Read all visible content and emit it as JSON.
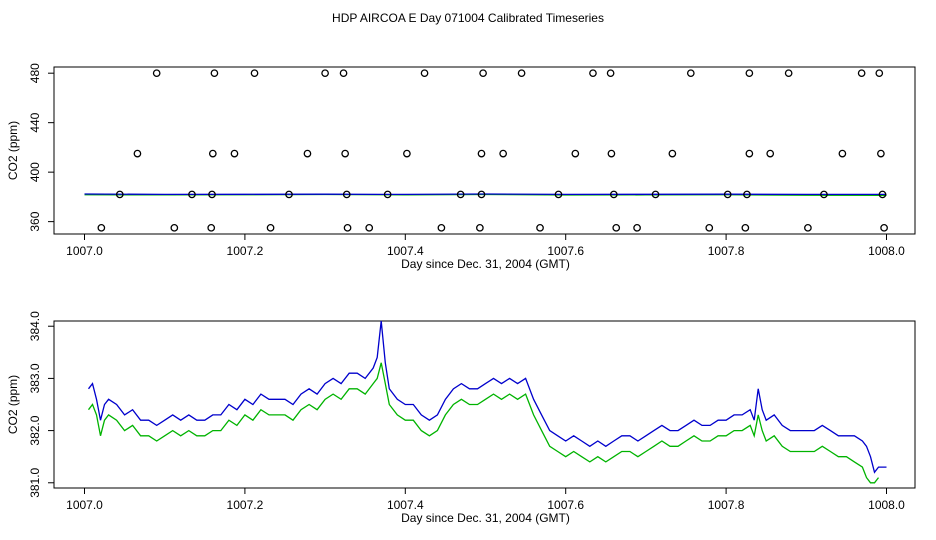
{
  "title": "HDP AIRCOA E  Day 071004  Calibrated Timeseries",
  "colors": {
    "blue": "#0000cc",
    "green": "#00b300",
    "axis": "#000000",
    "points": "#000000"
  },
  "chart_data": [
    {
      "type": "scatter",
      "xlabel": "Day since Dec. 31, 2004 (GMT)",
      "ylabel": "CO2 (ppm)",
      "xlim": [
        1007.0,
        1008.0
      ],
      "ylim": [
        350,
        485
      ],
      "xticks": [
        1007.0,
        1007.2,
        1007.4,
        1007.6,
        1007.8,
        1008.0
      ],
      "xtick_labels": [
        "1007.0",
        "1007.2",
        "1007.4",
        "1007.6",
        "1007.8",
        "1008.0"
      ],
      "yticks": [
        360,
        400,
        440,
        480
      ],
      "ytick_labels": [
        "360",
        "400",
        "440",
        "480"
      ],
      "points": [
        [
          1007.09,
          480
        ],
        [
          1007.162,
          480
        ],
        [
          1007.212,
          480
        ],
        [
          1007.3,
          480
        ],
        [
          1007.323,
          480
        ],
        [
          1007.424,
          480
        ],
        [
          1007.497,
          480
        ],
        [
          1007.545,
          480
        ],
        [
          1007.634,
          480
        ],
        [
          1007.656,
          480
        ],
        [
          1007.756,
          480
        ],
        [
          1007.829,
          480
        ],
        [
          1007.878,
          480
        ],
        [
          1007.969,
          480
        ],
        [
          1007.991,
          480
        ],
        [
          1007.066,
          415
        ],
        [
          1007.16,
          415
        ],
        [
          1007.187,
          415
        ],
        [
          1007.278,
          415
        ],
        [
          1007.325,
          415
        ],
        [
          1007.402,
          415
        ],
        [
          1007.495,
          415
        ],
        [
          1007.522,
          415
        ],
        [
          1007.612,
          415
        ],
        [
          1007.657,
          415
        ],
        [
          1007.733,
          415
        ],
        [
          1007.829,
          415
        ],
        [
          1007.855,
          415
        ],
        [
          1007.945,
          415
        ],
        [
          1007.993,
          415
        ],
        [
          1007.044,
          382
        ],
        [
          1007.134,
          382
        ],
        [
          1007.159,
          382
        ],
        [
          1007.255,
          382
        ],
        [
          1007.327,
          382
        ],
        [
          1007.378,
          382
        ],
        [
          1007.469,
          382
        ],
        [
          1007.495,
          382
        ],
        [
          1007.591,
          382
        ],
        [
          1007.66,
          382
        ],
        [
          1007.712,
          382
        ],
        [
          1007.802,
          382
        ],
        [
          1007.826,
          382
        ],
        [
          1007.922,
          382
        ],
        [
          1007.995,
          382
        ],
        [
          1007.021,
          355
        ],
        [
          1007.112,
          355
        ],
        [
          1007.158,
          355
        ],
        [
          1007.232,
          355
        ],
        [
          1007.328,
          355
        ],
        [
          1007.355,
          355
        ],
        [
          1007.445,
          355
        ],
        [
          1007.493,
          355
        ],
        [
          1007.568,
          355
        ],
        [
          1007.663,
          355
        ],
        [
          1007.689,
          355
        ],
        [
          1007.779,
          355
        ],
        [
          1007.824,
          355
        ],
        [
          1007.902,
          355
        ],
        [
          1007.997,
          355
        ]
      ],
      "series": [
        {
          "color": "#0000cc",
          "x": [
            1007.0,
            1007.1,
            1007.2,
            1007.3,
            1007.4,
            1007.5,
            1007.6,
            1007.7,
            1007.8,
            1007.9,
            1008.0
          ],
          "values": [
            382.3,
            382.0,
            382.1,
            382.2,
            382.0,
            382.3,
            382.0,
            382.1,
            382.2,
            382.0,
            382.0
          ]
        },
        {
          "color": "#00b300",
          "x": [
            1007.0,
            1007.1,
            1007.2,
            1007.3,
            1007.4,
            1007.5,
            1007.6,
            1007.7,
            1007.8,
            1007.9,
            1008.0
          ],
          "values": [
            381.8,
            381.6,
            381.8,
            381.9,
            381.6,
            381.9,
            381.5,
            381.6,
            381.8,
            381.4,
            381.2
          ]
        }
      ]
    },
    {
      "type": "line",
      "xlabel": "Day since Dec. 31, 2004 (GMT)",
      "ylabel": "CO2 (ppm)",
      "xlim": [
        1007.0,
        1008.0
      ],
      "ylim": [
        380.9,
        384.1
      ],
      "xticks": [
        1007.0,
        1007.2,
        1007.4,
        1007.6,
        1007.8,
        1008.0
      ],
      "xtick_labels": [
        "1007.0",
        "1007.2",
        "1007.4",
        "1007.6",
        "1007.8",
        "1008.0"
      ],
      "yticks": [
        381.0,
        382.0,
        383.0,
        384.0
      ],
      "ytick_labels": [
        "381.0",
        "382.0",
        "383.0",
        "384.0"
      ],
      "series": [
        {
          "color": "#0000cc",
          "x": [
            1007.005,
            1007.01,
            1007.015,
            1007.02,
            1007.025,
            1007.03,
            1007.04,
            1007.05,
            1007.06,
            1007.07,
            1007.08,
            1007.09,
            1007.1,
            1007.11,
            1007.12,
            1007.13,
            1007.14,
            1007.15,
            1007.16,
            1007.17,
            1007.18,
            1007.19,
            1007.2,
            1007.21,
            1007.22,
            1007.23,
            1007.24,
            1007.25,
            1007.26,
            1007.27,
            1007.28,
            1007.29,
            1007.3,
            1007.31,
            1007.32,
            1007.33,
            1007.34,
            1007.35,
            1007.36,
            1007.365,
            1007.37,
            1007.375,
            1007.38,
            1007.39,
            1007.4,
            1007.41,
            1007.42,
            1007.43,
            1007.44,
            1007.45,
            1007.46,
            1007.47,
            1007.48,
            1007.49,
            1007.5,
            1007.51,
            1007.52,
            1007.53,
            1007.54,
            1007.55,
            1007.56,
            1007.57,
            1007.58,
            1007.59,
            1007.6,
            1007.61,
            1007.62,
            1007.63,
            1007.64,
            1007.65,
            1007.66,
            1007.67,
            1007.68,
            1007.69,
            1007.7,
            1007.71,
            1007.72,
            1007.73,
            1007.74,
            1007.75,
            1007.76,
            1007.77,
            1007.78,
            1007.79,
            1007.8,
            1007.81,
            1007.82,
            1007.83,
            1007.835,
            1007.84,
            1007.845,
            1007.85,
            1007.86,
            1007.87,
            1007.88,
            1007.89,
            1007.9,
            1007.91,
            1007.92,
            1007.93,
            1007.94,
            1007.95,
            1007.96,
            1007.97,
            1007.975,
            1007.98,
            1007.985,
            1007.99,
            1008.0
          ],
          "values": [
            382.8,
            382.9,
            382.6,
            382.2,
            382.5,
            382.6,
            382.5,
            382.3,
            382.4,
            382.2,
            382.2,
            382.1,
            382.2,
            382.3,
            382.2,
            382.3,
            382.2,
            382.2,
            382.3,
            382.3,
            382.5,
            382.4,
            382.6,
            382.5,
            382.7,
            382.6,
            382.6,
            382.6,
            382.5,
            382.7,
            382.8,
            382.7,
            382.9,
            383.0,
            382.9,
            383.1,
            383.1,
            383.0,
            383.2,
            383.4,
            384.1,
            383.3,
            382.8,
            382.6,
            382.5,
            382.5,
            382.3,
            382.2,
            382.3,
            382.6,
            382.8,
            382.9,
            382.8,
            382.8,
            382.9,
            383.0,
            382.9,
            383.0,
            382.9,
            383.0,
            382.6,
            382.3,
            382.0,
            381.9,
            381.8,
            381.9,
            381.8,
            381.7,
            381.8,
            381.7,
            381.8,
            381.9,
            381.9,
            381.8,
            381.9,
            382.0,
            382.1,
            382.0,
            382.0,
            382.1,
            382.2,
            382.1,
            382.1,
            382.2,
            382.2,
            382.3,
            382.3,
            382.4,
            382.2,
            382.8,
            382.4,
            382.2,
            382.3,
            382.1,
            382.0,
            382.0,
            382.0,
            382.0,
            382.1,
            382.0,
            381.9,
            381.9,
            381.9,
            381.8,
            381.7,
            381.5,
            381.2,
            381.3,
            381.3
          ]
        },
        {
          "color": "#00b300",
          "x": [
            1007.005,
            1007.01,
            1007.015,
            1007.02,
            1007.025,
            1007.03,
            1007.04,
            1007.05,
            1007.06,
            1007.07,
            1007.08,
            1007.09,
            1007.1,
            1007.11,
            1007.12,
            1007.13,
            1007.14,
            1007.15,
            1007.16,
            1007.17,
            1007.18,
            1007.19,
            1007.2,
            1007.21,
            1007.22,
            1007.23,
            1007.24,
            1007.25,
            1007.26,
            1007.27,
            1007.28,
            1007.29,
            1007.3,
            1007.31,
            1007.32,
            1007.33,
            1007.34,
            1007.35,
            1007.36,
            1007.365,
            1007.37,
            1007.375,
            1007.38,
            1007.39,
            1007.4,
            1007.41,
            1007.42,
            1007.43,
            1007.44,
            1007.45,
            1007.46,
            1007.47,
            1007.48,
            1007.49,
            1007.5,
            1007.51,
            1007.52,
            1007.53,
            1007.54,
            1007.55,
            1007.56,
            1007.57,
            1007.58,
            1007.59,
            1007.6,
            1007.61,
            1007.62,
            1007.63,
            1007.64,
            1007.65,
            1007.66,
            1007.67,
            1007.68,
            1007.69,
            1007.7,
            1007.71,
            1007.72,
            1007.73,
            1007.74,
            1007.75,
            1007.76,
            1007.77,
            1007.78,
            1007.79,
            1007.8,
            1007.81,
            1007.82,
            1007.83,
            1007.835,
            1007.84,
            1007.845,
            1007.85,
            1007.86,
            1007.87,
            1007.88,
            1007.89,
            1007.9,
            1007.91,
            1007.92,
            1007.93,
            1007.94,
            1007.95,
            1007.96,
            1007.97,
            1007.975,
            1007.98,
            1007.985,
            1007.99
          ],
          "values": [
            382.4,
            382.5,
            382.3,
            381.9,
            382.2,
            382.3,
            382.2,
            382.0,
            382.1,
            381.9,
            381.9,
            381.8,
            381.9,
            382.0,
            381.9,
            382.0,
            381.9,
            381.9,
            382.0,
            382.0,
            382.2,
            382.1,
            382.3,
            382.2,
            382.4,
            382.3,
            382.3,
            382.3,
            382.2,
            382.4,
            382.5,
            382.4,
            382.6,
            382.7,
            382.6,
            382.8,
            382.8,
            382.7,
            382.9,
            383.0,
            383.3,
            382.9,
            382.5,
            382.3,
            382.2,
            382.2,
            382.0,
            381.9,
            382.0,
            382.3,
            382.5,
            382.6,
            382.5,
            382.5,
            382.6,
            382.7,
            382.6,
            382.7,
            382.6,
            382.7,
            382.3,
            382.0,
            381.7,
            381.6,
            381.5,
            381.6,
            381.5,
            381.4,
            381.5,
            381.4,
            381.5,
            381.6,
            381.6,
            381.5,
            381.6,
            381.7,
            381.8,
            381.7,
            381.7,
            381.8,
            381.9,
            381.8,
            381.8,
            381.9,
            381.9,
            382.0,
            382.0,
            382.1,
            381.9,
            382.3,
            382.0,
            381.8,
            381.9,
            381.7,
            381.6,
            381.6,
            381.6,
            381.6,
            381.7,
            381.6,
            381.5,
            381.5,
            381.4,
            381.3,
            381.1,
            381.0,
            381.0,
            381.1
          ]
        }
      ]
    }
  ]
}
